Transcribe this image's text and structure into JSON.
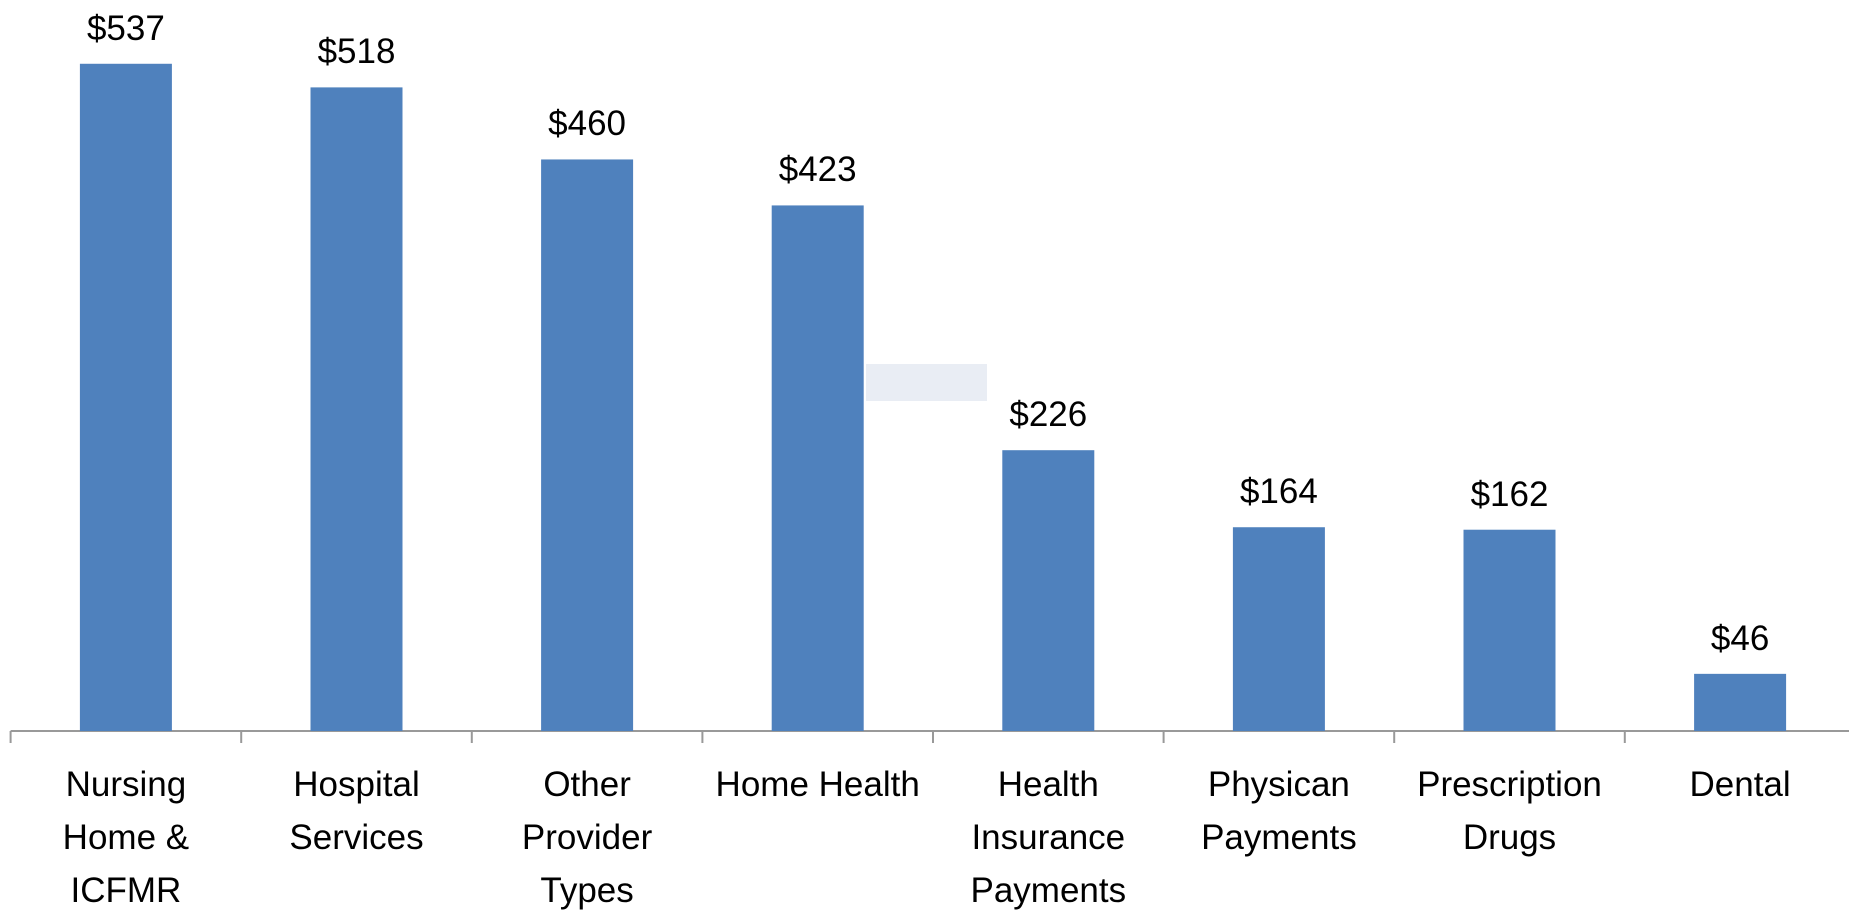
{
  "chart_data": {
    "type": "bar",
    "categories": [
      "Nursing\nHome &\nICFMR",
      "Hospital\nServices",
      "Other\nProvider\nTypes",
      "Home Health",
      "Health\nInsurance\nPayments",
      "Physican\nPayments",
      "Prescription\nDrugs",
      "Dental"
    ],
    "values": [
      537,
      518,
      460,
      423,
      226,
      164,
      162,
      46
    ],
    "value_labels": [
      "$537",
      "$518",
      "$460",
      "$423",
      "$226",
      "$164",
      "$162",
      "$46"
    ],
    "color": "#4f81bd"
  }
}
